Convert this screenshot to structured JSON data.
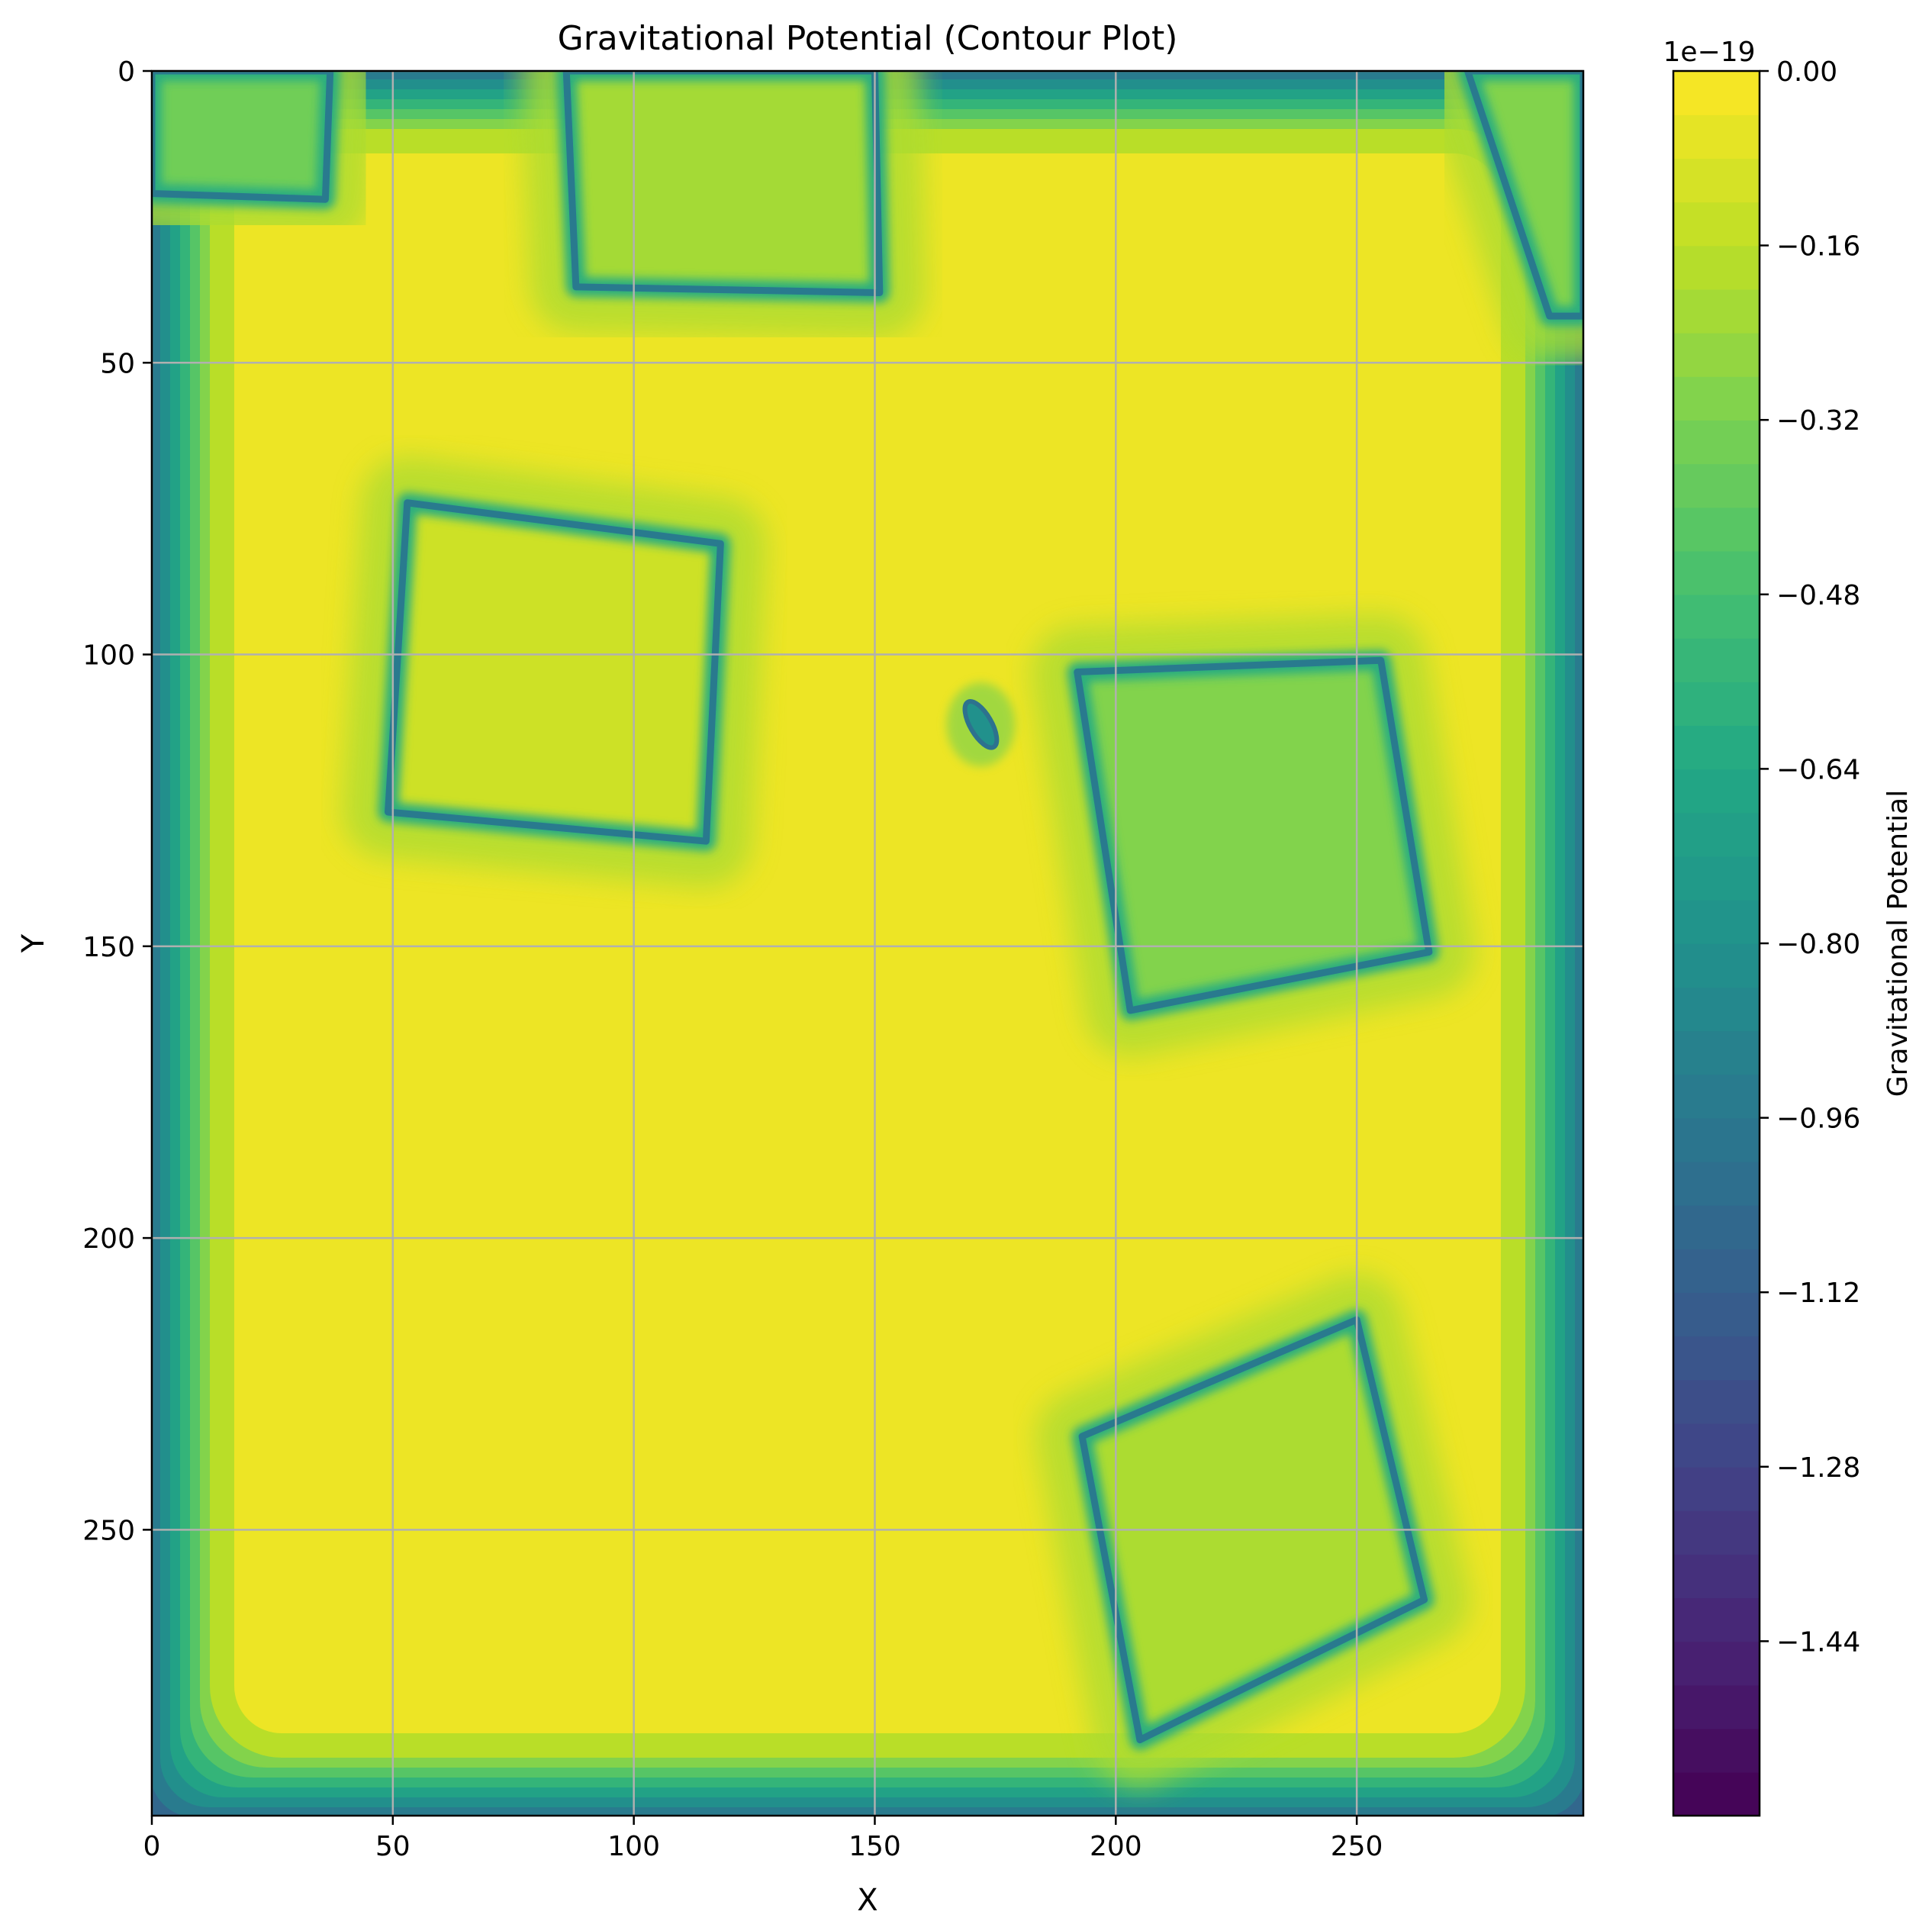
{
  "chart_data": {
    "type": "contour",
    "title": "Gravitational Potential (Contour Plot)",
    "xlabel": "X",
    "ylabel": "Y",
    "xlim": [
      0,
      297
    ],
    "ylim": [
      299,
      0
    ],
    "y_axis_inverted": true,
    "grid": true,
    "x_ticks": [
      0,
      50,
      100,
      150,
      200,
      250
    ],
    "y_ticks": [
      0,
      50,
      100,
      150,
      200,
      250
    ],
    "colormap": "viridis",
    "colorbar": {
      "label": "Gravitational Potential",
      "offset_label": "1e−19",
      "range": [
        -1.6,
        0.0
      ],
      "ticks": [
        0.0,
        -0.16,
        -0.32,
        -0.48,
        -0.64,
        -0.8,
        -0.96,
        -1.12,
        -1.28,
        -1.44
      ],
      "tick_labels": [
        "0.00",
        "−0.16",
        "−0.32",
        "−0.48",
        "−0.64",
        "−0.80",
        "−0.96",
        "−1.12",
        "−1.28",
        "−1.44"
      ]
    },
    "background_value": -0.04,
    "border_value": -1.2,
    "features": [
      {
        "name": "top-left block",
        "shape": "quad",
        "corners": [
          [
            0,
            0
          ],
          [
            37,
            0
          ],
          [
            36,
            22
          ],
          [
            0,
            21
          ]
        ],
        "interior": -0.35,
        "edge": -0.95
      },
      {
        "name": "top-middle block",
        "shape": "quad",
        "corners": [
          [
            86,
            0
          ],
          [
            150,
            0
          ],
          [
            151,
            38
          ],
          [
            88,
            37
          ]
        ],
        "interior": -0.22,
        "edge": -0.95
      },
      {
        "name": "top-right wedge",
        "shape": "quad",
        "corners": [
          [
            273,
            0
          ],
          [
            297,
            0
          ],
          [
            297,
            42
          ],
          [
            290,
            42
          ]
        ],
        "interior": -0.3,
        "edge": -0.95
      },
      {
        "name": "upper-left square",
        "shape": "quad",
        "corners": [
          [
            53,
            74
          ],
          [
            118,
            81
          ],
          [
            115,
            132
          ],
          [
            49,
            127
          ]
        ],
        "interior": -0.12,
        "edge": -0.95
      },
      {
        "name": "middle-right square",
        "shape": "quad",
        "corners": [
          [
            192,
            103
          ],
          [
            255,
            101
          ],
          [
            265,
            151
          ],
          [
            203,
            161
          ]
        ],
        "interior": -0.3,
        "edge": -0.95
      },
      {
        "name": "lower-right rotated square",
        "shape": "quad",
        "corners": [
          [
            193,
            234
          ],
          [
            250,
            214
          ],
          [
            264,
            262
          ],
          [
            205,
            286
          ]
        ],
        "interior": -0.2,
        "edge": -0.95
      },
      {
        "name": "small blob",
        "shape": "blob",
        "center": [
          172,
          112
        ],
        "interior": -0.8,
        "edge": -1.0
      }
    ]
  }
}
